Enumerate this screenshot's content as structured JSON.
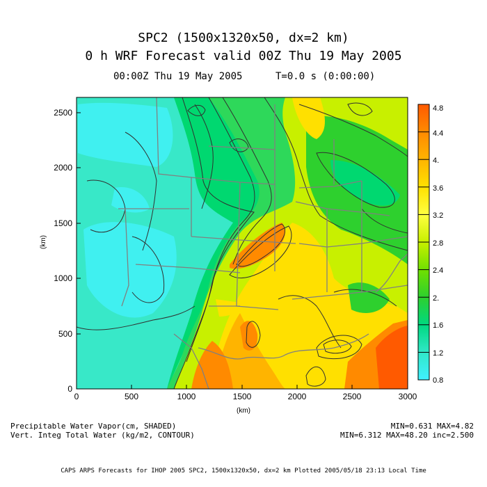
{
  "header": {
    "title_line1": "SPC2 (1500x1320x50, dx=2 km)",
    "title_line2": "0 h WRF Forecast valid 00Z Thu 19 May 2005",
    "time": "00:00Z Thu 19 May 2005",
    "model_time": "T=0.0 s (0:00:00)"
  },
  "axes": {
    "x_label": "(km)",
    "y_label": "(km)",
    "x_ticks": [
      "0",
      "500",
      "1000",
      "1500",
      "2000",
      "2500",
      "3000"
    ],
    "y_ticks": [
      "0",
      "500",
      "1000",
      "1500",
      "2000",
      "2500"
    ],
    "x_range": [
      0,
      3000
    ],
    "y_range": [
      0,
      2640
    ]
  },
  "colorbar": {
    "ticks": [
      "4.8",
      "4.4",
      "4.",
      "3.6",
      "3.2",
      "2.8",
      "2.4",
      "2.",
      "1.6",
      "1.2",
      "0.8"
    ],
    "colors": [
      "#ff5a00",
      "#ff8a00",
      "#ffb400",
      "#ffe000",
      "#ffff40",
      "#c8f000",
      "#70e000",
      "#2ed02e",
      "#00d880",
      "#30e8c8",
      "#40f0ff"
    ]
  },
  "legend": {
    "shaded_field": "Precipitable Water Vapor(cm, SHADED)",
    "shaded_stats": "MIN=0.631 MAX=4.82",
    "contour_field": "Vert. Integ Total Water (kg/m2, CONTOUR)",
    "contour_stats": "MIN=6.312 MAX=48.20 inc=2.500"
  },
  "footer": {
    "text": "CAPS ARPS Forecasts for IHOP 2005   SPC2, 1500x1320x50, dx=2 km   Plotted 2005/05/18 23:13 Local Time"
  }
}
